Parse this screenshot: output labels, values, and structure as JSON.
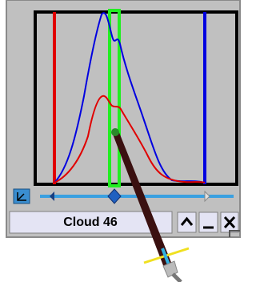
{
  "panel": {
    "title": "Cloud 46"
  }
}
